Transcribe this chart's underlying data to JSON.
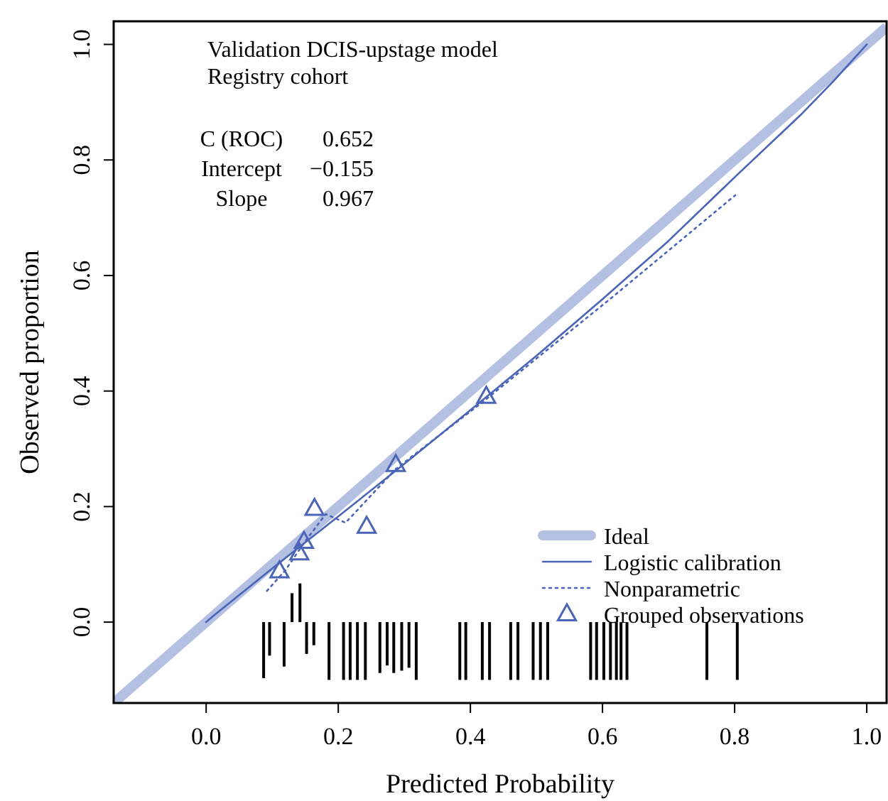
{
  "chart_data": {
    "type": "line",
    "xlabel": "Predicted Probability",
    "ylabel": "Observed proportion",
    "annotations": [
      "Validation DCIS-upstage model",
      "Registry cohort",
      "C (ROC) 0.652",
      "Intercept −0.155",
      "Slope 0.967"
    ],
    "xlim": [
      -0.14,
      1.03
    ],
    "ylim": [
      -0.14,
      1.04
    ],
    "xticks": [
      {
        "value": 0,
        "label": "0.0"
      },
      {
        "value": 0.2,
        "label": "0.2"
      },
      {
        "value": 0.4,
        "label": "0.4"
      },
      {
        "value": 0.6,
        "label": "0.6"
      },
      {
        "value": 0.8,
        "label": "0.8"
      },
      {
        "value": 1,
        "label": "1.0"
      }
    ],
    "yticks": [
      {
        "value": 0,
        "label": "0.0"
      },
      {
        "value": 0.2,
        "label": "0.2"
      },
      {
        "value": 0.4,
        "label": "0.4"
      },
      {
        "value": 0.6,
        "label": "0.6"
      },
      {
        "value": 0.8,
        "label": "0.8"
      },
      {
        "value": 1,
        "label": "1.0"
      }
    ],
    "grid": false,
    "legend": "bottom right",
    "series": [
      {
        "name": "Ideal",
        "color": "#b4c0e2",
        "line_style": "solid",
        "marker": "none",
        "x": [
          -0.14,
          1.03
        ],
        "values": [
          -0.14,
          1.03
        ]
      },
      {
        "name": "Logistic calibration",
        "color": "#4a64b8",
        "line_style": "solid",
        "marker": "none",
        "x": [
          0,
          0.01,
          0.1,
          0.2,
          0.3,
          0.4,
          0.5,
          0.6,
          0.7,
          0.8,
          0.9,
          0.95,
          1
        ],
        "values": [
          0,
          0.01,
          0.093,
          0.183,
          0.274,
          0.367,
          0.461,
          0.559,
          0.66,
          0.77,
          0.878,
          0.937,
          1
        ]
      },
      {
        "name": "Nonparametric",
        "color": "#4a64b8",
        "line_style": "dotted",
        "marker": "none",
        "x": [
          0.092,
          0.12,
          0.15,
          0.181,
          0.211,
          0.287,
          0.424,
          0.61,
          0.801
        ],
        "values": [
          0.054,
          0.09,
          0.14,
          0.187,
          0.172,
          0.265,
          0.386,
          0.558,
          0.739
        ]
      },
      {
        "name": "Grouped observations",
        "type": "scatter",
        "color": "#4a64b8",
        "marker": "triangle",
        "x": [
          0.111,
          0.141,
          0.148,
          0.164,
          0.243,
          0.287,
          0.424
        ],
        "values": [
          0.088,
          0.119,
          0.139,
          0.196,
          0.165,
          0.272,
          0.39
        ]
      },
      {
        "type": "bar",
        "color": "#000000",
        "x": [
          0.087,
          0.096,
          0.118,
          0.13,
          0.142,
          0.152,
          0.163,
          0.186,
          0.208,
          0.218,
          0.229,
          0.241,
          0.263,
          0.274,
          0.284,
          0.296,
          0.307,
          0.318,
          0.384,
          0.393,
          0.418,
          0.429,
          0.461,
          0.472,
          0.495,
          0.506,
          0.517,
          0.582,
          0.591,
          0.602,
          0.612,
          0.621,
          0.628,
          0.637,
          0.758,
          0.804
        ],
        "values": [
          -0.097,
          -0.058,
          -0.077,
          0.05,
          0.067,
          -0.055,
          -0.04,
          -0.1,
          -0.1,
          -0.1,
          -0.1,
          -0.1,
          -0.088,
          -0.075,
          -0.088,
          -0.084,
          -0.079,
          -0.1,
          -0.1,
          -0.1,
          -0.1,
          -0.1,
          -0.1,
          -0.1,
          -0.1,
          -0.1,
          -0.1,
          -0.1,
          -0.1,
          -0.1,
          -0.1,
          -0.1,
          -0.1,
          -0.1,
          -0.1,
          -0.1
        ]
      }
    ]
  }
}
